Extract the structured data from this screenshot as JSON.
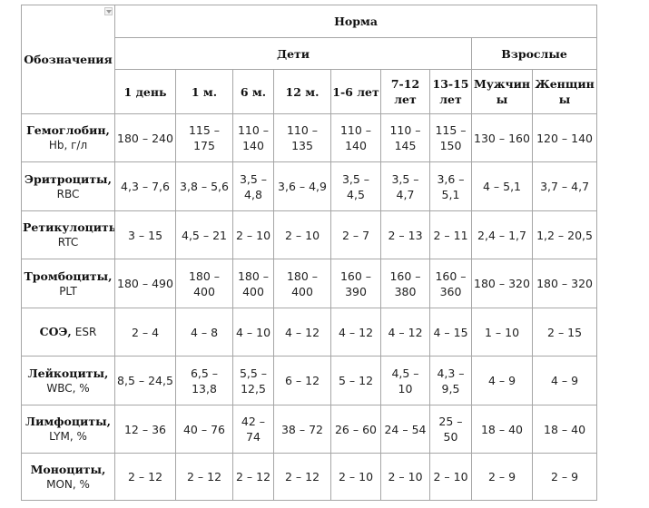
{
  "table": {
    "corner_label": "Обозначения",
    "header_norm": "Норма",
    "header_children": "Дети",
    "header_adults": "Взрослые",
    "age_columns": [
      [
        "1 день"
      ],
      [
        "1 м."
      ],
      [
        "6 м."
      ],
      [
        "12 м."
      ],
      [
        "1-6 лет"
      ],
      [
        "7-12",
        "лет"
      ],
      [
        "13-15",
        "лет"
      ],
      [
        "Мужчин",
        "ы"
      ],
      [
        "Женщин",
        "ы"
      ]
    ],
    "rows": [
      {
        "name": "Гемоглобин,",
        "abbr": "Hb, г/л",
        "inline": false,
        "cells": [
          [
            "180 – 240"
          ],
          [
            "115 –",
            "175"
          ],
          [
            "110 –",
            "140"
          ],
          [
            "110 –",
            "135"
          ],
          [
            "110 –",
            "140"
          ],
          [
            "110 –",
            "145"
          ],
          [
            "115 –",
            "150"
          ],
          [
            "130 – 160"
          ],
          [
            "120 – 140"
          ]
        ]
      },
      {
        "name": "Эритроциты,",
        "abbr": "RBC",
        "inline": false,
        "cells": [
          [
            "4,3 – 7,6"
          ],
          [
            "3,8 – 5,6"
          ],
          [
            "3,5 –",
            "4,8"
          ],
          [
            "3,6 – 4,9"
          ],
          [
            "3,5 – 4,5"
          ],
          [
            "3,5 –",
            "4,7"
          ],
          [
            "3,6 –",
            "5,1"
          ],
          [
            "4 – 5,1"
          ],
          [
            "3,7 – 4,7"
          ]
        ]
      },
      {
        "name": "Ретикулоциты,",
        "abbr": "RTC",
        "inline": false,
        "cells": [
          [
            "3 – 15"
          ],
          [
            "4,5 – 21"
          ],
          [
            "2 – 10"
          ],
          [
            "2 – 10"
          ],
          [
            "2 – 7"
          ],
          [
            "2 – 13"
          ],
          [
            "2 – 11"
          ],
          [
            "2,4 – 1,7"
          ],
          [
            "1,2 – 20,5"
          ]
        ]
      },
      {
        "name": "Тромбоциты,",
        "abbr": "PLT",
        "inline": false,
        "cells": [
          [
            "180 – 490"
          ],
          [
            "180 –",
            "400"
          ],
          [
            "180 –",
            "400"
          ],
          [
            "180 –",
            "400"
          ],
          [
            "160 –",
            "390"
          ],
          [
            "160 –",
            "380"
          ],
          [
            "160 –",
            "360"
          ],
          [
            "180 – 320"
          ],
          [
            "180 – 320"
          ]
        ]
      },
      {
        "name": "СОЭ,",
        "abbr": "ESR",
        "inline": true,
        "cells": [
          [
            "2 – 4"
          ],
          [
            "4 – 8"
          ],
          [
            "4 – 10"
          ],
          [
            "4 – 12"
          ],
          [
            "4 – 12"
          ],
          [
            "4 – 12"
          ],
          [
            "4 – 15"
          ],
          [
            "1 – 10"
          ],
          [
            "2 – 15"
          ]
        ]
      },
      {
        "name": "Лейкоциты,",
        "abbr": "WBC, %",
        "inline": false,
        "cells": [
          [
            "8,5 – 24,5"
          ],
          [
            "6,5 –",
            "13,8"
          ],
          [
            "5,5 –",
            "12,5"
          ],
          [
            "6 – 12"
          ],
          [
            "5 – 12"
          ],
          [
            "4,5 –",
            "10"
          ],
          [
            "4,3 –",
            "9,5"
          ],
          [
            "4 – 9"
          ],
          [
            "4 – 9"
          ]
        ]
      },
      {
        "name": "Лимфоциты,",
        "abbr": "LYM, %",
        "inline": false,
        "cells": [
          [
            "12 – 36"
          ],
          [
            "40 – 76"
          ],
          [
            "42 –",
            "74"
          ],
          [
            "38 – 72"
          ],
          [
            "26 – 60"
          ],
          [
            "24 – 54"
          ],
          [
            "25 –",
            "50"
          ],
          [
            "18 – 40"
          ],
          [
            "18 – 40"
          ]
        ]
      },
      {
        "name": "Моноциты,",
        "abbr": "MON, %",
        "inline": false,
        "cells": [
          [
            "2 – 12"
          ],
          [
            "2 – 12"
          ],
          [
            "2 – 12"
          ],
          [
            "2 – 12"
          ],
          [
            "2 – 10"
          ],
          [
            "2 – 10"
          ],
          [
            "2 – 10"
          ],
          [
            "2 – 9"
          ],
          [
            "2 – 9"
          ]
        ]
      }
    ]
  }
}
